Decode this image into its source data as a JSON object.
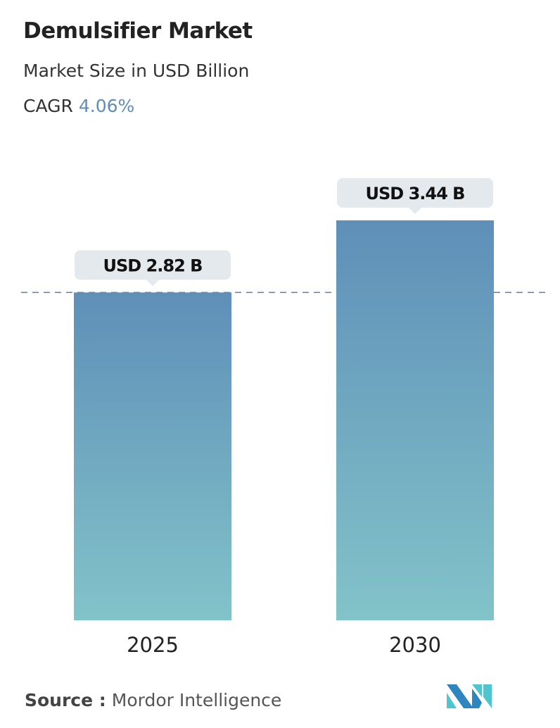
{
  "title": "Demulsifier Market",
  "subtitle": "Market Size in USD Billion",
  "cagr_label": "CAGR",
  "cagr_value": "4.06%",
  "source_label": "Source :",
  "source_value": "Mordor Intelligence",
  "colors": {
    "bar_top": "#5f8fb8",
    "bar_bottom": "#82c3c9",
    "label_bg": "#e3e9ec",
    "cagr": "#5f8db5"
  },
  "chart_data": {
    "type": "bar",
    "categories": [
      "2025",
      "2030"
    ],
    "values": [
      2.82,
      3.44
    ],
    "data_labels": [
      "USD 2.82 B",
      "USD 3.44 B"
    ],
    "unit": "USD Billion",
    "reference_line": 2.82,
    "ylim": [
      0,
      3.44
    ]
  }
}
